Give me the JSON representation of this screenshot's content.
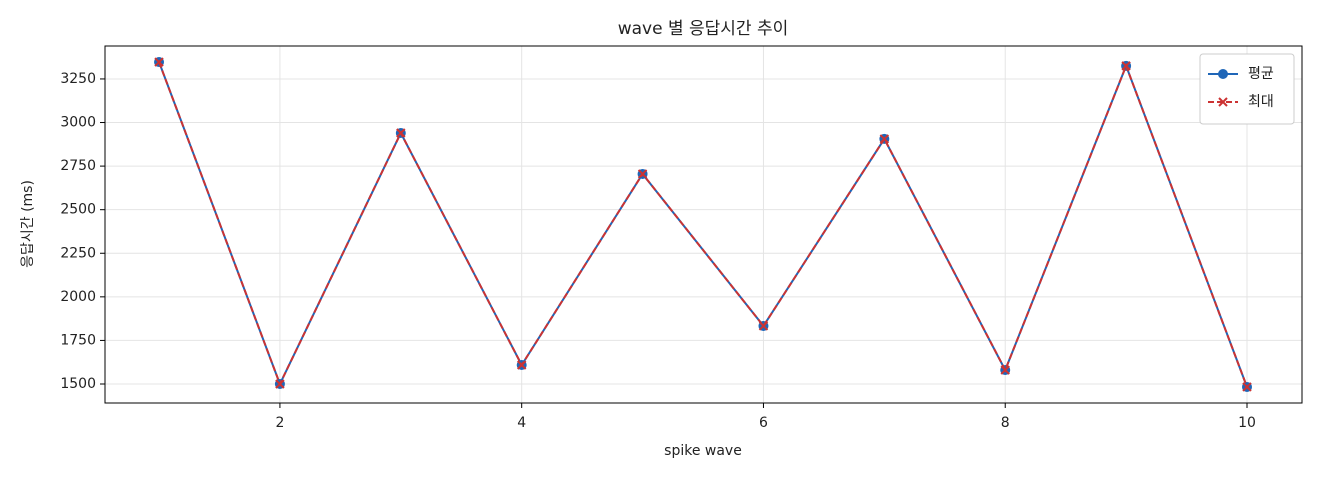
{
  "chart_data": {
    "type": "line",
    "title": "wave 별 응답시간 추이",
    "x_label": "spike wave",
    "y_label": "응답시간 (ms)",
    "x": [
      1,
      2,
      3,
      4,
      5,
      6,
      7,
      8,
      9,
      10
    ],
    "series": [
      {
        "name": "평균",
        "color": "#1f66b8",
        "marker": "circle",
        "dash": false,
        "values": [
          3347,
          1500,
          2940,
          1609,
          2705,
          1833,
          2906,
          1580,
          3325,
          1483
        ]
      },
      {
        "name": "최대",
        "color": "#cc3333",
        "marker": "x",
        "dash": true,
        "values": [
          3347,
          1500,
          2940,
          1609,
          2705,
          1833,
          2906,
          1580,
          3325,
          1483
        ]
      }
    ],
    "xlim": [
      0.553,
      10.455
    ],
    "xticks": [
      2,
      4,
      6,
      8,
      10
    ],
    "ylim": [
      1391,
      3439
    ],
    "yticks": [
      1500,
      1750,
      2000,
      2250,
      2500,
      2750,
      3000,
      3250
    ],
    "grid": true,
    "legend": "upper right"
  }
}
